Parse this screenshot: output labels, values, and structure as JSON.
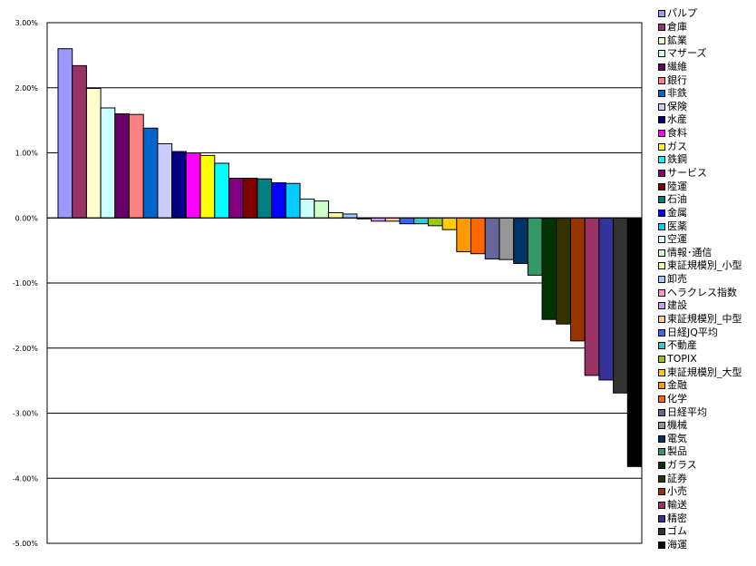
{
  "chart_data": {
    "type": "bar",
    "title": "",
    "xlabel": "",
    "ylabel": "",
    "ylim": [
      -5,
      3
    ],
    "y_ticks": [
      "3.00%",
      "2.00%",
      "1.00%",
      "0.00%",
      "-1.00%",
      "-2.00%",
      "-3.00%",
      "-4.00%",
      "-5.00%"
    ],
    "grid": true,
    "legend_position": "right",
    "categories": [
      "パルプ",
      "倉庫",
      "鉱業",
      "マザーズ",
      "繊維",
      "銀行",
      "非鉄",
      "保険",
      "水産",
      "食料",
      "ガス",
      "鉄鋼",
      "サービス",
      "陸運",
      "石油",
      "金属",
      "医薬",
      "空運",
      "情報･通信",
      "東証規模別_小型",
      "卸売",
      "ヘラクレス指数",
      "建設",
      "東証規模別_中型",
      "日経JQ平均",
      "不動産",
      "TOPIX",
      "東証規模別_大型",
      "金融",
      "化学",
      "日経平均",
      "機械",
      "電気",
      "製品",
      "ガラス",
      "証券",
      "小売",
      "輸送",
      "精密",
      "ゴム",
      "海運"
    ],
    "values": [
      2.6,
      2.34,
      1.99,
      1.69,
      1.6,
      1.59,
      1.38,
      1.14,
      1.02,
      1.0,
      0.96,
      0.84,
      0.61,
      0.61,
      0.6,
      0.54,
      0.53,
      0.29,
      0.26,
      0.08,
      0.06,
      -0.01,
      -0.05,
      -0.05,
      -0.09,
      -0.09,
      -0.12,
      -0.18,
      -0.52,
      -0.55,
      -0.63,
      -0.64,
      -0.7,
      -0.88,
      -1.56,
      -1.63,
      -1.89,
      -2.42,
      -2.49,
      -2.69,
      -3.82
    ],
    "colors": [
      "#9999FF",
      "#993366",
      "#FFFFCC",
      "#CCFFFF",
      "#660066",
      "#FF8080",
      "#0066CC",
      "#CCCCFF",
      "#000080",
      "#FF00FF",
      "#FFFF00",
      "#00FFFF",
      "#800080",
      "#800000",
      "#008080",
      "#0000FF",
      "#00CCFF",
      "#CCFFFF",
      "#CCFFCC",
      "#FFFF99",
      "#99CCFF",
      "#FF99CC",
      "#CC99FF",
      "#FFCC99",
      "#3366FF",
      "#33CCCC",
      "#99CC00",
      "#FFCC00",
      "#FF9900",
      "#FF6600",
      "#666699",
      "#969696",
      "#003366",
      "#339966",
      "#003300",
      "#333300",
      "#993300",
      "#993366",
      "#333399",
      "#333333",
      "#000000"
    ]
  }
}
